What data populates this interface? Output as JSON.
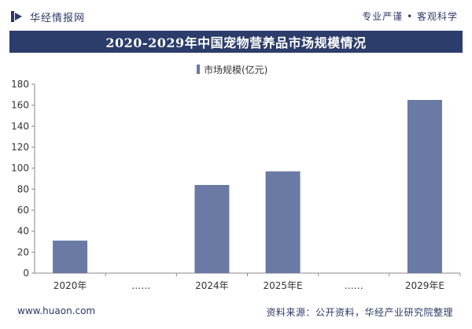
{
  "header": {
    "brand": "华经情报网",
    "slogan": "专业严谨 • 客观科学",
    "logo_icon": "bar-logo-icon"
  },
  "title": "2020-2029年中国宠物营养品市场规模情况",
  "footer": {
    "website": "www.huaon.com",
    "source": "资料来源：公开资料，华经产业研究院整理"
  },
  "colors": {
    "title_bg": "#2c3d6b",
    "bar": "#6a7aa4",
    "brand": "#2b3a66"
  },
  "chart_data": {
    "type": "bar",
    "categories": [
      "2020年",
      "……",
      "2024年",
      "2025年E",
      "……",
      "2029年E"
    ],
    "series": [
      {
        "name": "市场规模(亿元)",
        "values": [
          31,
          null,
          84,
          97,
          null,
          165
        ]
      }
    ],
    "ylim": [
      0,
      180
    ],
    "yticks": [
      0,
      20,
      40,
      60,
      80,
      100,
      120,
      140,
      160,
      180
    ],
    "legend": "top-center",
    "grid": false
  }
}
